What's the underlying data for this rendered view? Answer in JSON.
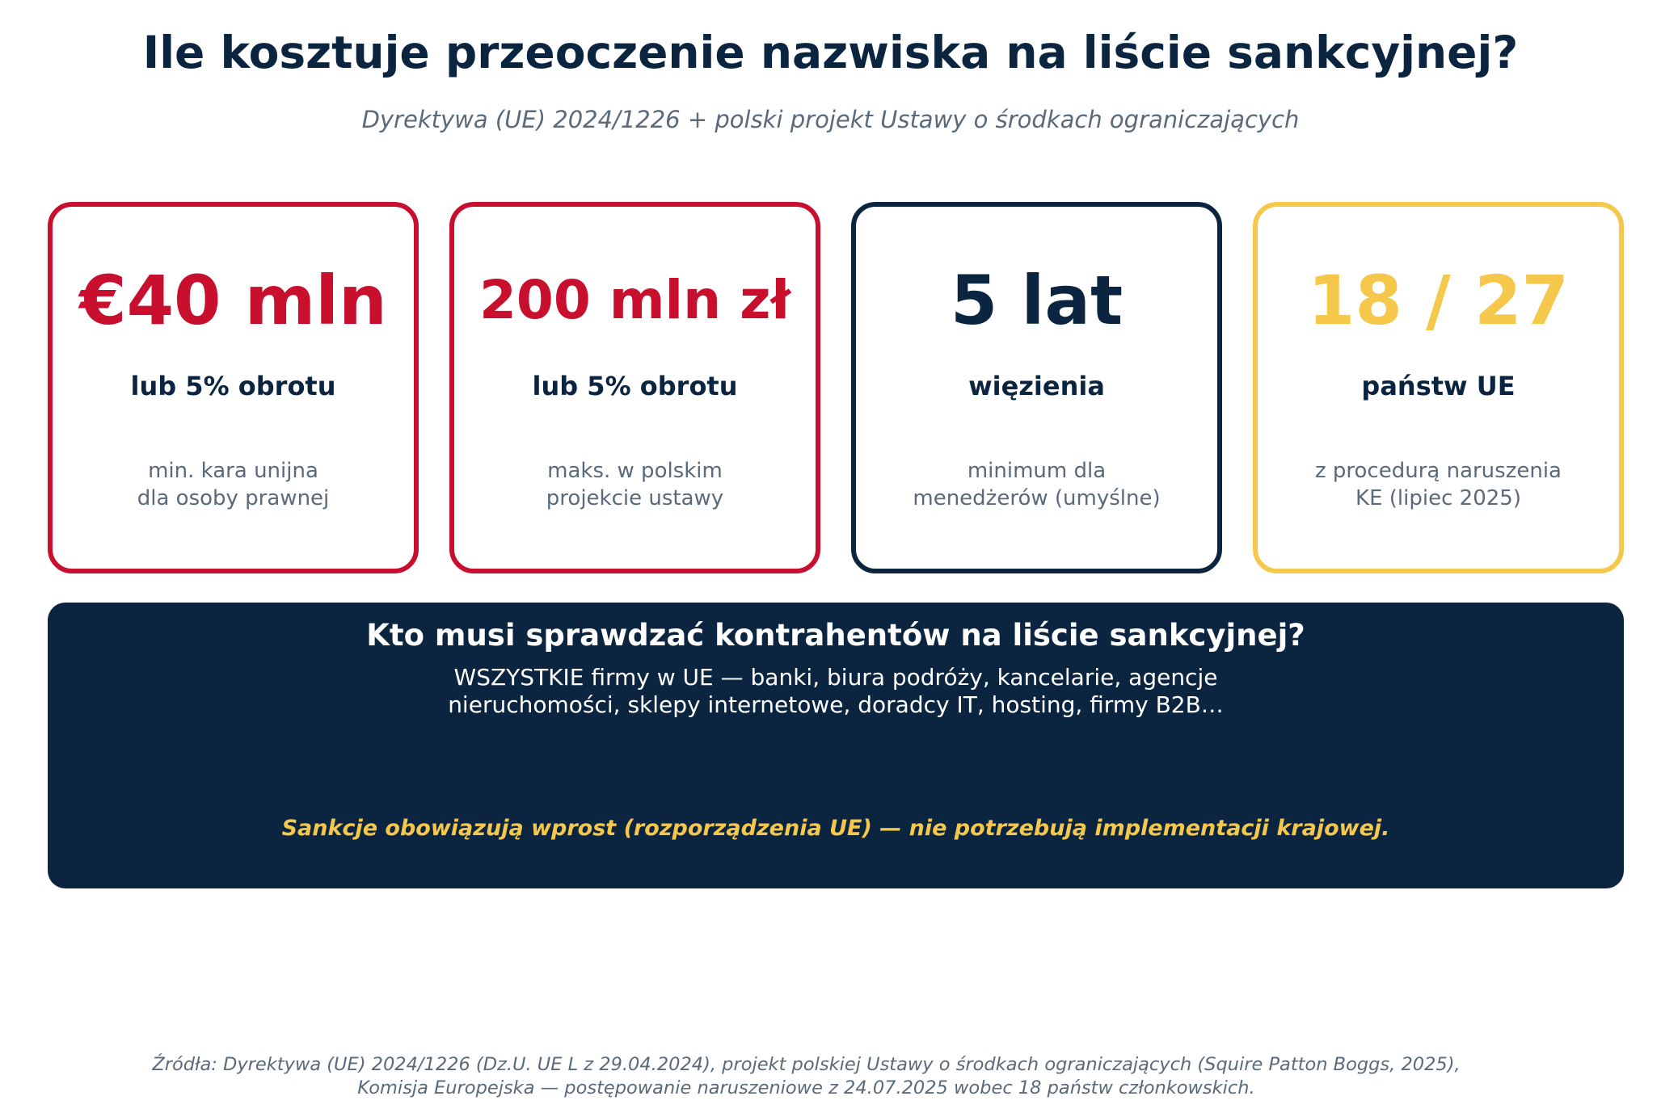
{
  "header": {
    "title": "Ile kosztuje przeoczenie nazwiska na liście sankcyjnej?",
    "subtitle": "Dyrektywa (UE) 2024/1226 + polski projekt Ustawy o środkach ograniczających"
  },
  "cards": [
    {
      "value": "€40 mln",
      "label": "lub 5% obrotu",
      "desc_line1": "min. kara unijna",
      "desc_line2": "dla osoby prawnej",
      "accent_color": "#c8102e"
    },
    {
      "value": "200 mln zł",
      "label": "lub 5% obrotu",
      "desc_line1": "maks. w polskim",
      "desc_line2": "projekcie ustawy",
      "accent_color": "#c8102e"
    },
    {
      "value": "5 lat",
      "label": "więzienia",
      "desc_line1": "minimum dla",
      "desc_line2": "menedżerów (umyślne)",
      "accent_color": "#0b2540"
    },
    {
      "value": "18 / 27",
      "label": "państw UE",
      "desc_line1": "z procedurą naruszenia",
      "desc_line2": "KE (lipiec 2025)",
      "accent_color": "#f5c84c"
    }
  ],
  "panel": {
    "title": "Kto musi sprawdzać kontrahentów na liście sankcyjnej?",
    "text_line1": "WSZYSTKIE firmy w UE — banki, biura podróży, kancelarie, agencje",
    "text_line2": "nieruchomości, sklepy internetowe, doradcy IT, hosting, firmy B2B…",
    "note": "Sankcje obowiązują wprost (rozporządzenia UE) — nie potrzebują implementacji krajowej."
  },
  "footer": {
    "line1": "Źródła: Dyrektywa (UE) 2024/1226 (Dz.U. UE L z 29.04.2024), projekt polskiej Ustawy o środkach ograniczających (Squire Patton Boggs, 2025),",
    "line2": "Komisja Europejska — postępowanie naruszeniowe z 24.07.2025 wobec 18 państw członkowskich."
  },
  "colors": {
    "navy": "#0b2540",
    "red": "#c8102e",
    "yellow": "#f5c84c",
    "gray_text": "#5a6a7a"
  }
}
